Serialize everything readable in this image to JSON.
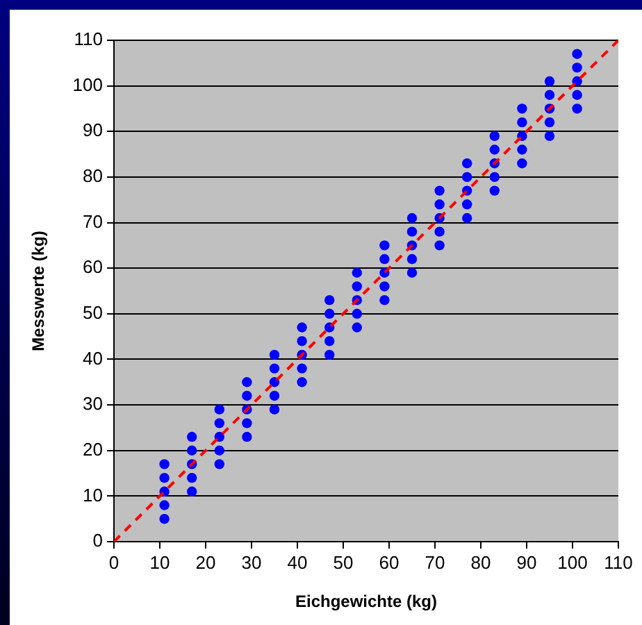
{
  "chart_data": {
    "type": "scatter",
    "xlabel": "Eichgewichte (kg)",
    "ylabel": "Messwerte (kg)",
    "xlim": [
      0,
      110
    ],
    "ylim": [
      0,
      110
    ],
    "xticks": [
      0,
      10,
      20,
      30,
      40,
      50,
      60,
      70,
      80,
      90,
      100,
      110
    ],
    "yticks": [
      0,
      10,
      20,
      30,
      40,
      50,
      60,
      70,
      80,
      90,
      100,
      110
    ],
    "grid": "y",
    "marker": "circle",
    "series": [
      {
        "color": "#0000ff",
        "x": [
          11,
          11,
          11,
          11,
          11,
          17,
          17,
          17,
          17,
          17,
          23,
          23,
          23,
          23,
          23,
          29,
          29,
          29,
          29,
          29,
          35,
          35,
          35,
          35,
          35,
          41,
          41,
          41,
          41,
          41,
          47,
          47,
          47,
          47,
          47,
          53,
          53,
          53,
          53,
          53,
          59,
          59,
          59,
          59,
          59,
          65,
          65,
          65,
          65,
          65,
          71,
          71,
          71,
          71,
          71,
          77,
          77,
          77,
          77,
          77,
          83,
          83,
          83,
          83,
          83,
          89,
          89,
          89,
          89,
          89,
          95,
          95,
          95,
          95,
          95,
          101,
          101,
          101,
          101,
          101
        ],
        "values": [
          17,
          14,
          11,
          8,
          5,
          23,
          20,
          17,
          14,
          11,
          29,
          26,
          23,
          20,
          17,
          35,
          32,
          29,
          26,
          23,
          41,
          38,
          35,
          32,
          29,
          47,
          44,
          41,
          38,
          35,
          53,
          50,
          47,
          44,
          41,
          59,
          56,
          53,
          50,
          47,
          65,
          62,
          59,
          56,
          53,
          71,
          68,
          65,
          62,
          59,
          77,
          74,
          71,
          68,
          65,
          83,
          80,
          77,
          74,
          71,
          89,
          86,
          83,
          80,
          77,
          95,
          92,
          89,
          86,
          83,
          101,
          98,
          95,
          92,
          89,
          107,
          104,
          101,
          98,
          95
        ]
      },
      {
        "type": "line",
        "color": "#ff0000",
        "line_style": "dashed",
        "marker": "none",
        "x": [
          0,
          110
        ],
        "values": [
          0,
          110
        ]
      }
    ]
  }
}
